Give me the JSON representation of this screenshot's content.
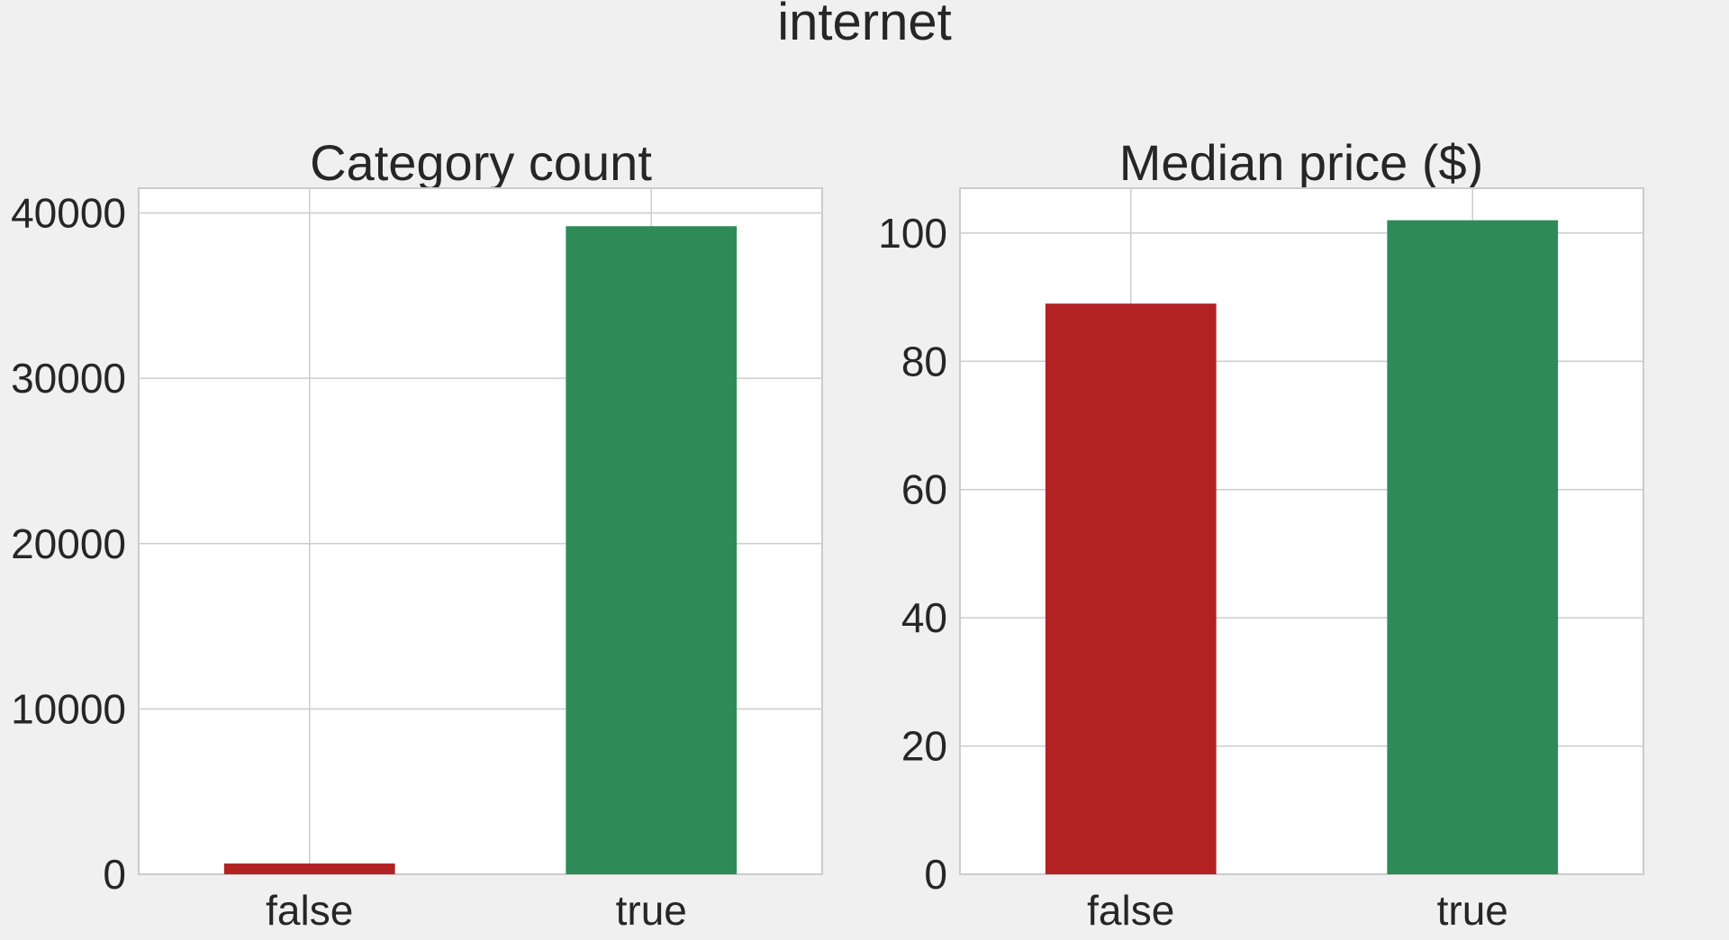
{
  "figure": {
    "title": "internet",
    "background_color": "#f0f0f0"
  },
  "chart_data": [
    {
      "type": "bar",
      "title": "Category count",
      "xlabel": "",
      "ylabel": "",
      "categories": [
        "false",
        "true"
      ],
      "values": [
        650,
        39200
      ],
      "colors": [
        "#b22222",
        "#2e8b57"
      ],
      "ylim": [
        0,
        41500
      ],
      "yticks": [
        0,
        10000,
        20000,
        30000,
        40000
      ],
      "ytick_labels": [
        "0",
        "10000",
        "20000",
        "30000",
        "40000"
      ],
      "grid": true
    },
    {
      "type": "bar",
      "title": "Median price ($)",
      "xlabel": "",
      "ylabel": "",
      "categories": [
        "false",
        "true"
      ],
      "values": [
        89,
        102
      ],
      "colors": [
        "#b22222",
        "#2e8b57"
      ],
      "ylim": [
        0,
        107
      ],
      "yticks": [
        0,
        20,
        40,
        60,
        80,
        100
      ],
      "ytick_labels": [
        "0",
        "20",
        "40",
        "60",
        "80",
        "100"
      ],
      "grid": true
    }
  ]
}
